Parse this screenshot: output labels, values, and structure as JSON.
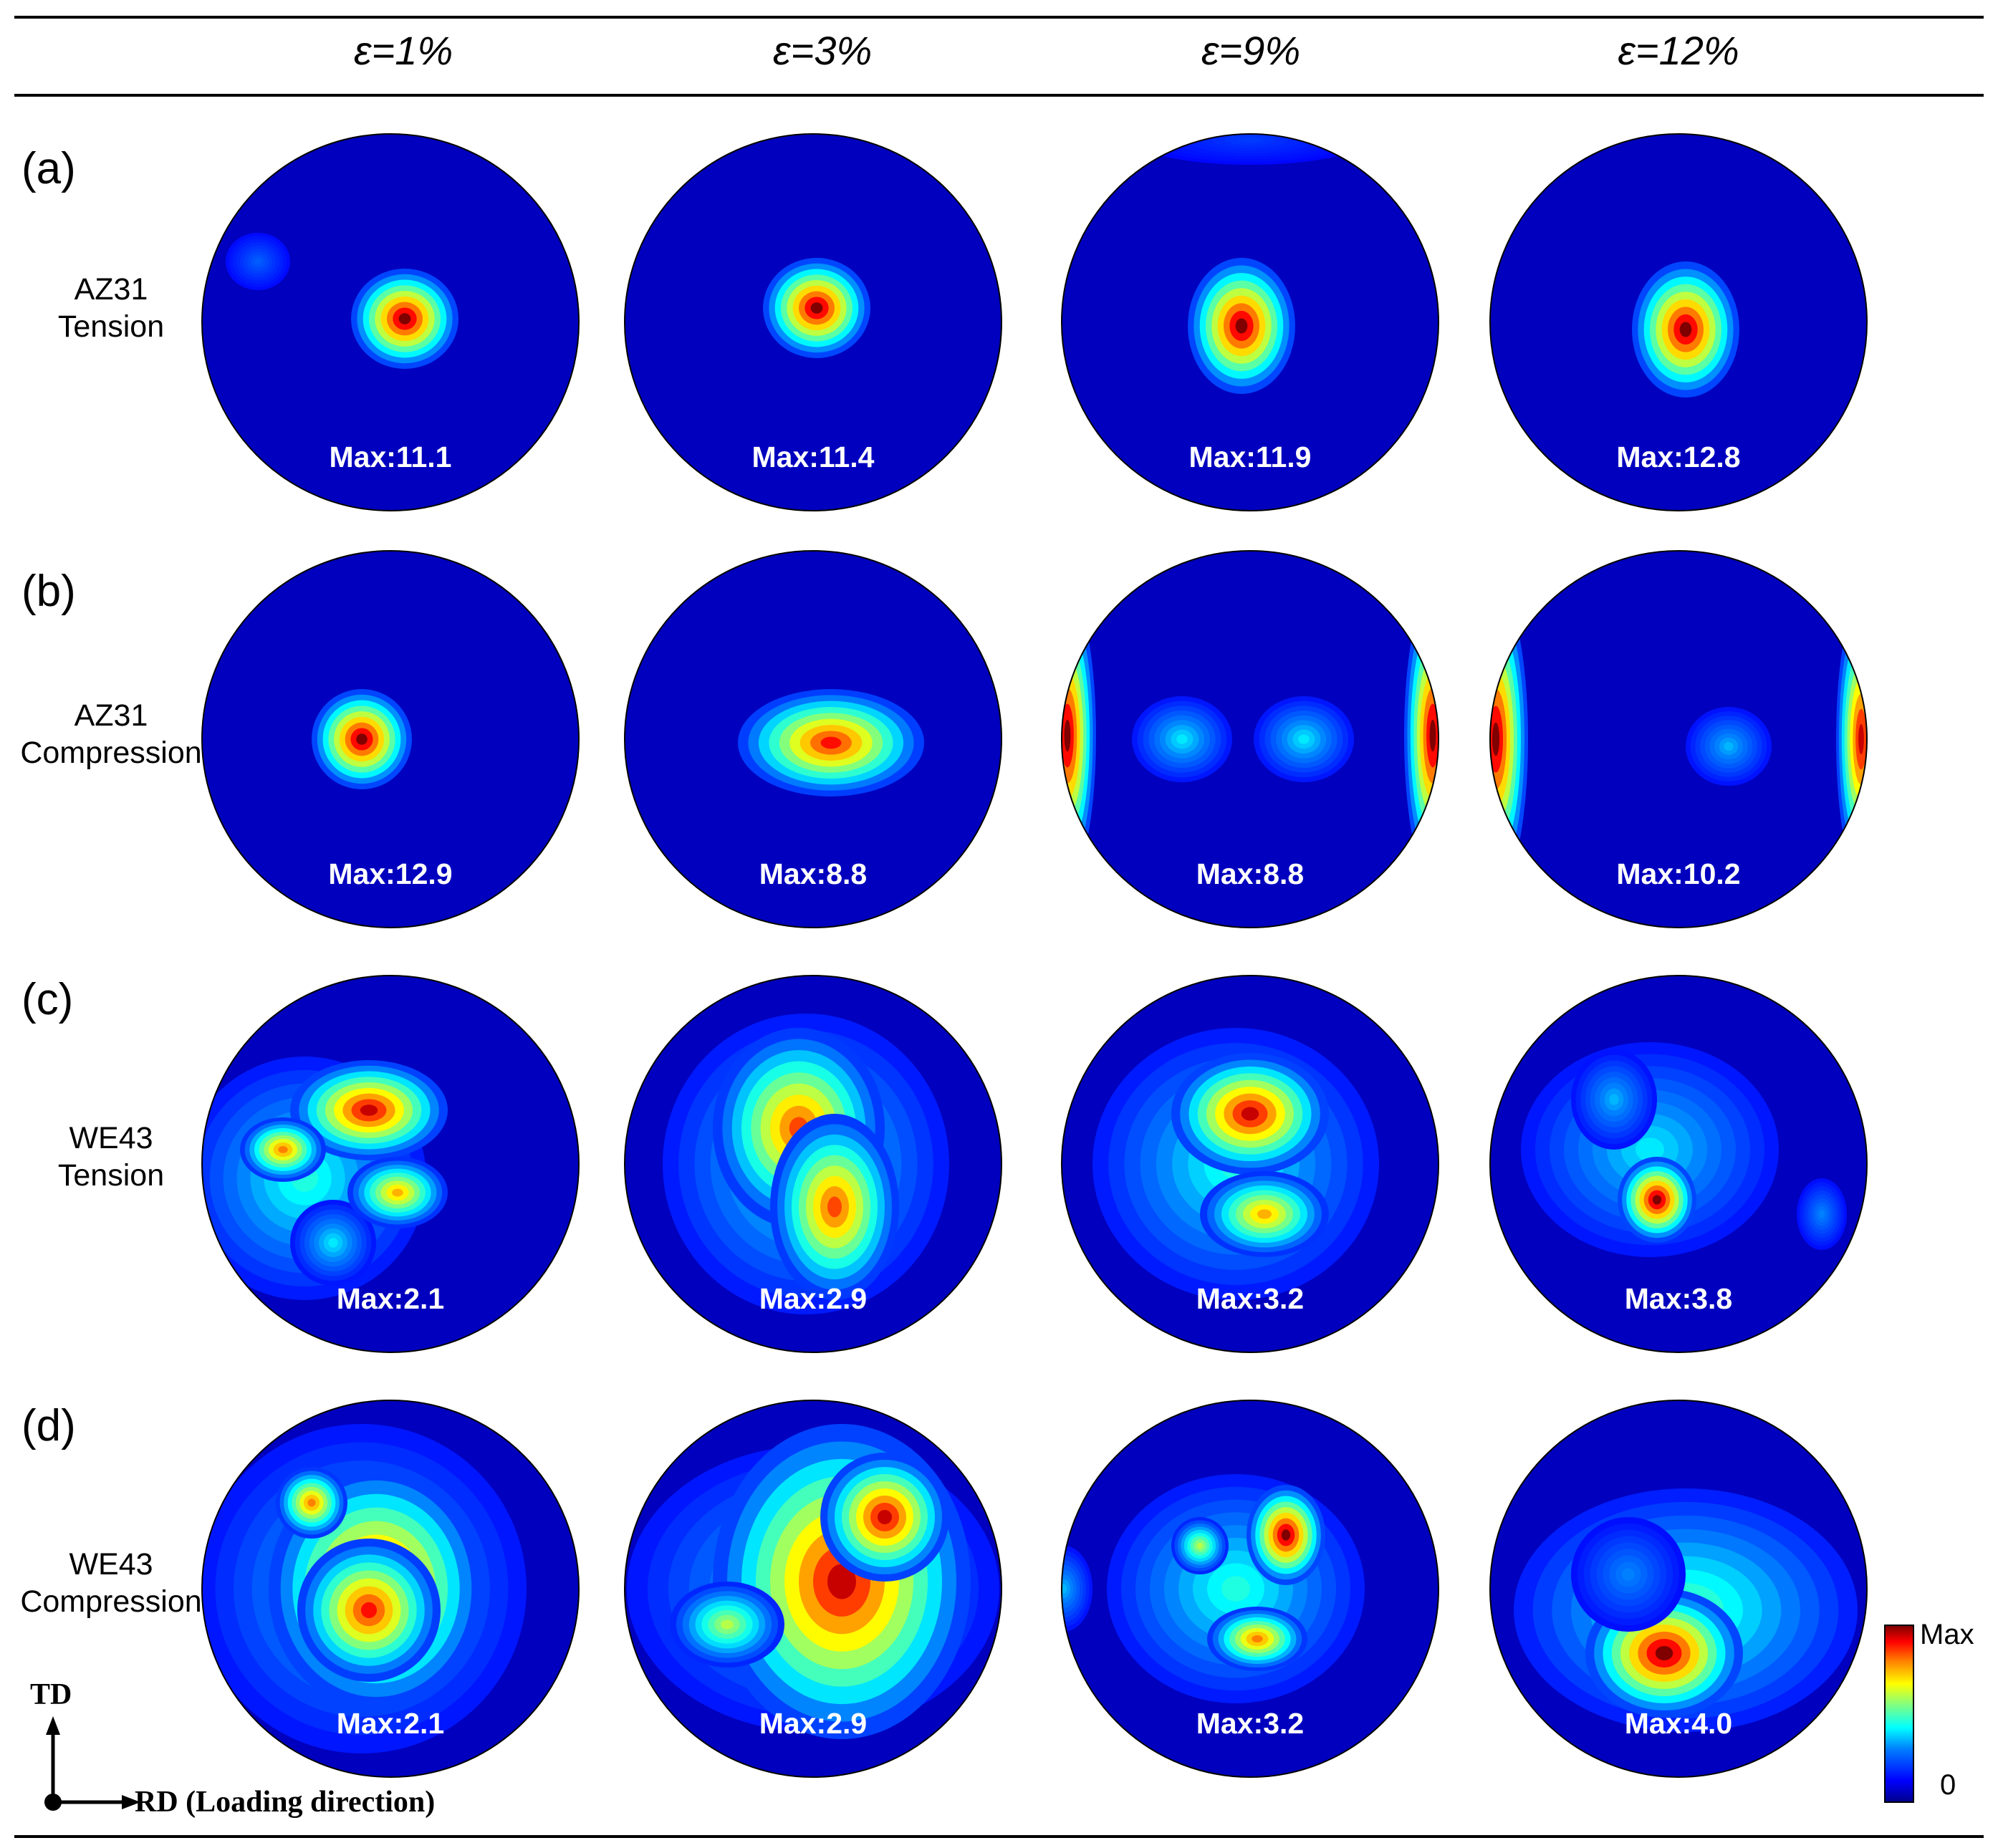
{
  "columns": [
    "ε=1%",
    "ε=3%",
    "ε=9%",
    "ε=12%"
  ],
  "rows": [
    {
      "panel": "(a)",
      "label_line1": "AZ31",
      "label_line2": "Tension",
      "max_labels": [
        "Max:11.1",
        "Max:11.4",
        "Max:11.9",
        "Max:12.8"
      ]
    },
    {
      "panel": "(b)",
      "label_line1": "AZ31",
      "label_line2": "Compression",
      "max_labels": [
        "Max:12.9",
        "Max:8.8",
        "Max:8.8",
        "Max:10.2"
      ]
    },
    {
      "panel": "(c)",
      "label_line1": "WE43",
      "label_line2": "Tension",
      "max_labels": [
        "Max:2.1",
        "Max:2.9",
        "Max:3.2",
        "Max:3.8"
      ]
    },
    {
      "panel": "(d)",
      "label_line1": "WE43",
      "label_line2": "Compression",
      "max_labels": [
        "Max:2.1",
        "Max:2.9",
        "Max:3.2",
        "Max:4.0"
      ]
    }
  ],
  "colorbar": {
    "max_label": "Max",
    "min_label": "0"
  },
  "axes": {
    "td_label": "TD",
    "rd_label": "RD (Loading direction)"
  },
  "colors": {
    "jet_low": "#00008f",
    "jet_high": "#800000"
  }
}
